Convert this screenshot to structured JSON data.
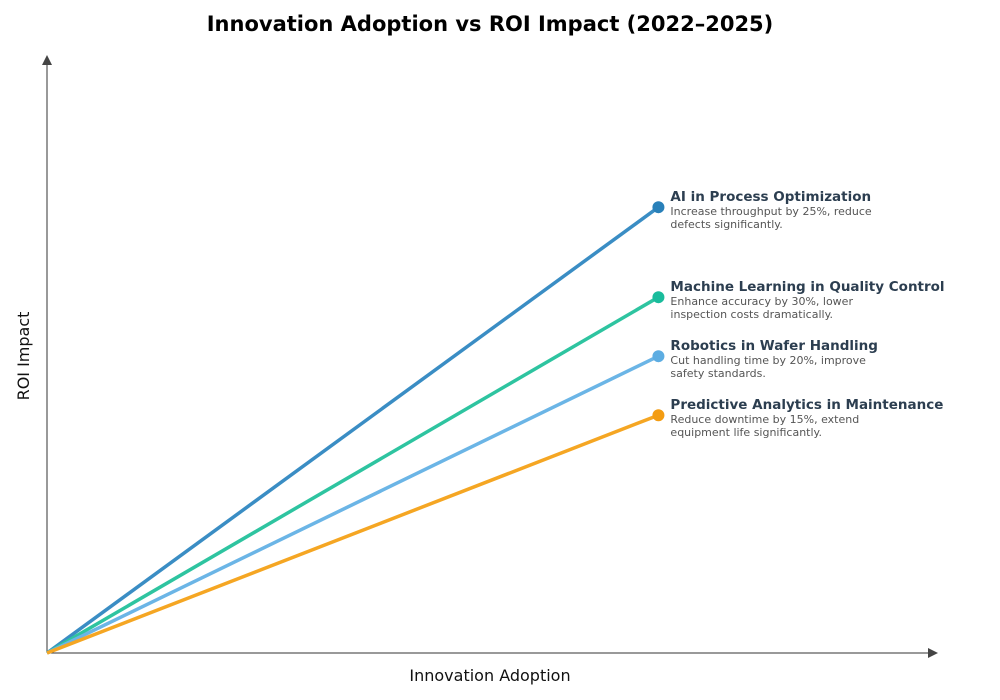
{
  "chart_data": {
    "type": "line",
    "title": "Innovation Adoption vs ROI Impact (2022–2025)",
    "xlabel": "Innovation Adoption",
    "ylabel": "ROI Impact",
    "xlim": [
      0,
      100
    ],
    "ylim": [
      0,
      100
    ],
    "grid": false,
    "series": [
      {
        "name": "AI in Process Optimization",
        "desc": [
          "Increase throughput by 25%, reduce",
          "defects significantly."
        ],
        "x": [
          0,
          68.7
        ],
        "y": [
          0,
          74.8
        ],
        "color": "#3a8dc4",
        "dot_color": "#2980b9"
      },
      {
        "name": "Machine Learning in Quality Control",
        "desc": [
          "Enhance accuracy by 30%, lower",
          "inspection costs dramatically."
        ],
        "x": [
          0,
          68.7
        ],
        "y": [
          0,
          59.7
        ],
        "color": "#2ec4a0",
        "dot_color": "#1abc9c"
      },
      {
        "name": "Robotics in Wafer Handling",
        "desc": [
          "Cut handling time by 20%, improve",
          "safety standards."
        ],
        "x": [
          0,
          68.7
        ],
        "y": [
          0,
          49.8
        ],
        "color": "#6bb5e6",
        "dot_color": "#5dade2"
      },
      {
        "name": "Predictive Analytics in Maintenance",
        "desc": [
          "Reduce downtime by 15%, extend",
          "equipment life significantly."
        ],
        "x": [
          0,
          68.7
        ],
        "y": [
          0,
          39.9
        ],
        "color": "#f5a623",
        "dot_color": "#f39c12"
      }
    ]
  }
}
